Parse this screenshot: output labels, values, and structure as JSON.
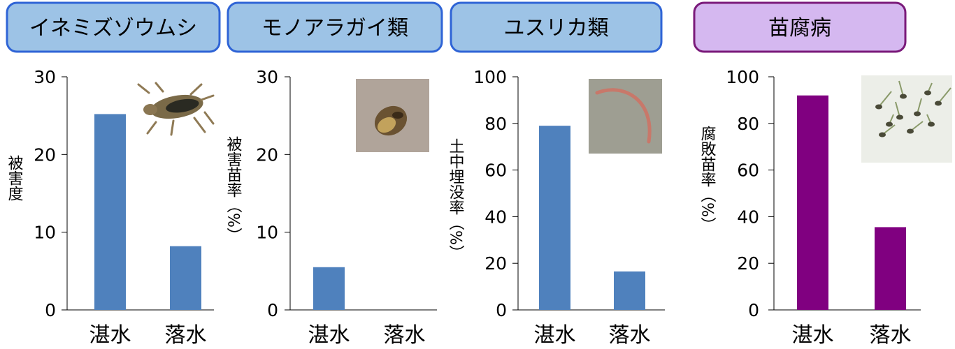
{
  "colors": {
    "blue_bar": "#4f81bd",
    "blue_header_fill": "#9dc3e6",
    "blue_header_stroke": "#2f64d6",
    "purple_bar": "#800080",
    "purple_header_fill": "#d5b8f0",
    "purple_header_stroke": "#7a1a7a",
    "axis": "#000000"
  },
  "chart_data": [
    {
      "type": "bar",
      "title": "イネミズゾウムシ",
      "ylabel": "被害度",
      "categories": [
        "湛水",
        "落水"
      ],
      "values": [
        25.2,
        8.2
      ],
      "ylim": [
        0,
        30
      ],
      "ticks": [
        0,
        10,
        20,
        30
      ],
      "photo": "weevil-photo"
    },
    {
      "type": "bar",
      "title": "モノアラガイ類",
      "ylabel": "被害苗率（%）",
      "categories": [
        "湛水",
        "落水"
      ],
      "values": [
        5.5,
        0
      ],
      "ylim": [
        0,
        30
      ],
      "ticks": [
        0,
        10,
        20,
        30
      ],
      "photo": "snail-photo"
    },
    {
      "type": "bar",
      "title": "ユスリカ類",
      "ylabel": "土中埋没率（%）",
      "categories": [
        "湛水",
        "落水"
      ],
      "values": [
        79,
        16.5
      ],
      "ylim": [
        0,
        100
      ],
      "ticks": [
        0,
        20,
        40,
        60,
        80,
        100
      ],
      "photo": "larva-photo"
    },
    {
      "type": "bar",
      "title": "苗腐病",
      "ylabel": "腐敗苗率（%）",
      "categories": [
        "湛水",
        "落水"
      ],
      "values": [
        92,
        35.5
      ],
      "ylim": [
        0,
        100
      ],
      "ticks": [
        0,
        20,
        40,
        60,
        80,
        100
      ],
      "photo": "seedlings-photo"
    }
  ]
}
